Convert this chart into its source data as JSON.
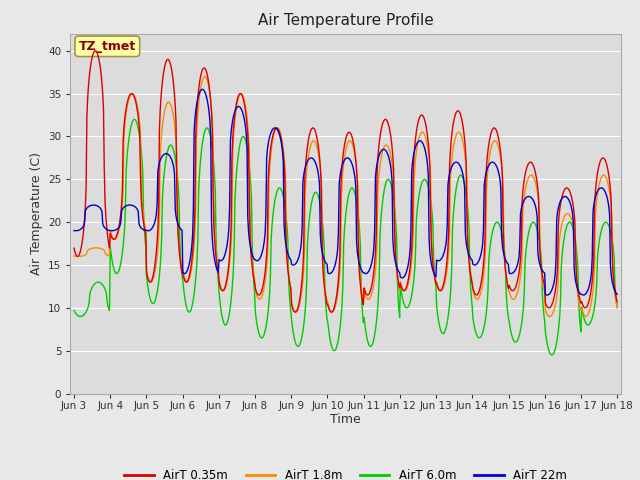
{
  "title": "Air Temperature Profile",
  "xlabel": "Time",
  "ylabel": "Air Temperature (C)",
  "ylim": [
    0,
    42
  ],
  "yticks": [
    0,
    5,
    10,
    15,
    20,
    25,
    30,
    35,
    40
  ],
  "fig_bg_color": "#e8e8e8",
  "plot_bg_color": "#dcdcdc",
  "annotation_text": "TZ_tmet",
  "annotation_bg": "#ffffaa",
  "annotation_border": "#999944",
  "annotation_text_color": "#880000",
  "series_colors": [
    "#dd0000",
    "#ff8800",
    "#00cc00",
    "#0000cc"
  ],
  "series_labels": [
    "AirT 0.35m",
    "AirT 1.8m",
    "AirT 6.0m",
    "AirT 22m"
  ],
  "n_days": 15,
  "points_per_day": 48,
  "daily_peaks_035m": [
    40.0,
    35.0,
    39.0,
    38.0,
    35.0,
    31.0,
    31.0,
    30.5,
    32.0,
    32.5,
    33.0,
    31.0,
    27.0,
    24.0,
    27.5
  ],
  "daily_troughs_035m": [
    16.0,
    18.0,
    13.0,
    13.0,
    12.0,
    11.5,
    9.5,
    9.5,
    11.5,
    12.0,
    12.0,
    11.5,
    12.0,
    10.0,
    10.0
  ],
  "daily_peaks_18m": [
    17.0,
    35.0,
    34.0,
    37.0,
    35.0,
    31.0,
    29.5,
    29.5,
    29.0,
    30.5,
    30.5,
    29.5,
    25.5,
    21.0,
    25.5
  ],
  "daily_troughs_18m": [
    16.0,
    18.0,
    13.0,
    13.0,
    12.0,
    11.0,
    9.5,
    9.5,
    11.0,
    12.0,
    12.0,
    11.0,
    11.0,
    9.0,
    9.0
  ],
  "daily_peaks_60m": [
    13.0,
    32.0,
    29.0,
    31.0,
    30.0,
    24.0,
    23.5,
    24.0,
    25.0,
    25.0,
    25.5,
    20.0,
    20.0,
    20.0,
    20.0
  ],
  "daily_troughs_60m": [
    9.0,
    14.0,
    10.5,
    9.5,
    8.0,
    6.5,
    5.5,
    5.0,
    5.5,
    10.0,
    7.0,
    6.5,
    6.0,
    4.5,
    8.0
  ],
  "daily_peaks_22m": [
    22.0,
    22.0,
    28.0,
    35.5,
    33.5,
    31.0,
    27.5,
    27.5,
    28.5,
    29.5,
    27.0,
    27.0,
    23.0,
    23.0,
    24.0
  ],
  "daily_troughs_22m": [
    19.0,
    19.0,
    19.0,
    14.0,
    15.5,
    15.5,
    15.0,
    14.0,
    14.0,
    13.5,
    15.5,
    15.0,
    14.0,
    11.5,
    11.5
  ],
  "xtick_labels": [
    "Jun 3",
    "Jun 4",
    "Jun 5",
    "Jun 6",
    "Jun 7",
    "Jun 8",
    "Jun 9",
    "Jun 10",
    "Jun 11",
    "Jun 12",
    "Jun 13",
    "Jun 14",
    "Jun 15",
    "Jun 16",
    "Jun 17",
    "Jun 18"
  ]
}
